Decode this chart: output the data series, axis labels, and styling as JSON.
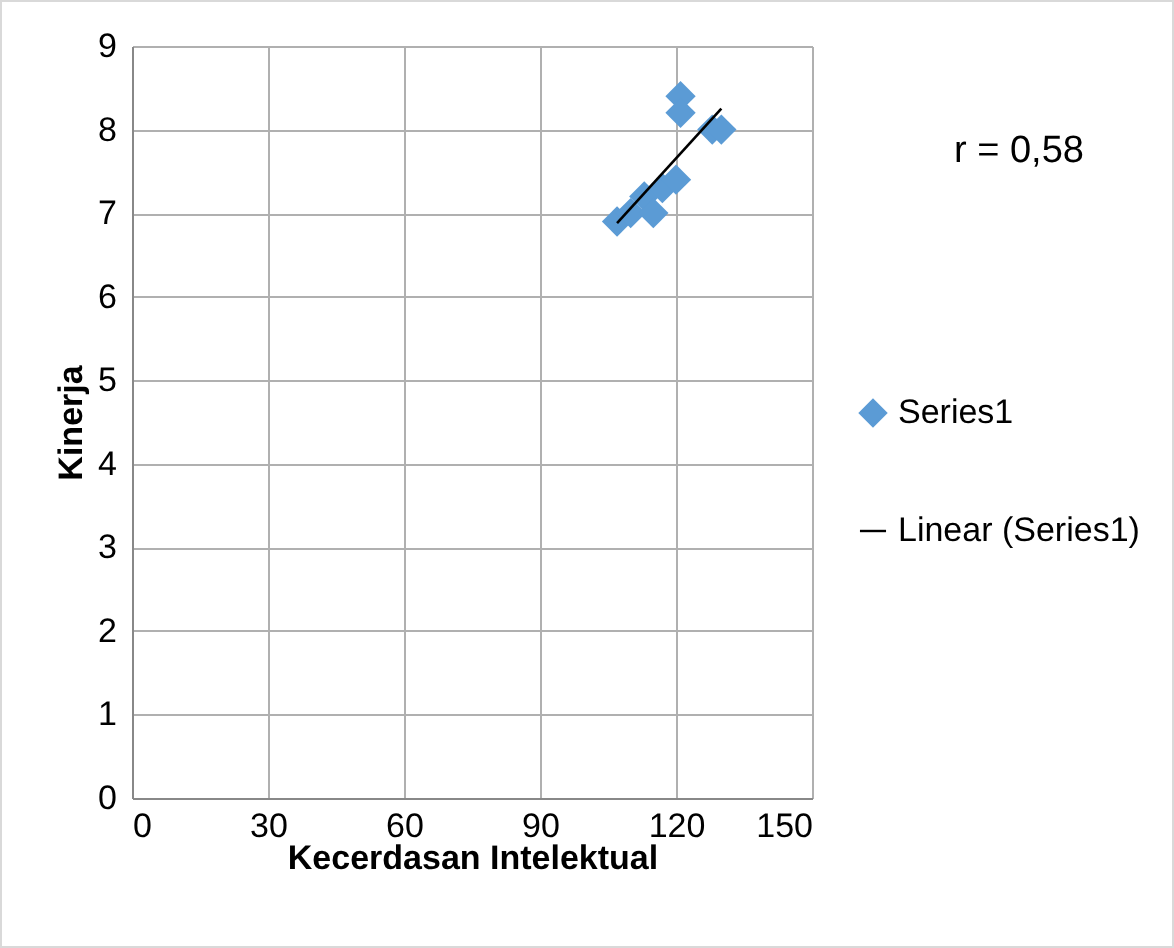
{
  "chart_data": {
    "type": "scatter",
    "xlabel": "Kecerdasan Intelektual",
    "ylabel": "Kinerja",
    "xlim": [
      0,
      150
    ],
    "xticks": [
      0,
      30,
      60,
      90,
      120,
      150
    ],
    "ylim": [
      0,
      9
    ],
    "yticks": [
      0,
      1,
      2,
      3,
      4,
      5,
      6,
      7,
      8,
      9
    ],
    "grid": true,
    "legend": "right",
    "annotations": [
      "r = 0,58"
    ],
    "series": [
      {
        "name": "Series1",
        "color": "#5b9bd5",
        "marker": "diamond",
        "x": [
          107,
          110,
          113,
          115,
          117,
          120,
          121,
          121,
          128,
          130
        ],
        "values": [
          6.9,
          7.0,
          7.2,
          7.0,
          7.3,
          7.4,
          8.4,
          8.2,
          8.0,
          8.0
        ]
      },
      {
        "name": "Linear (Series1)",
        "type": "line",
        "color": "#000000",
        "x": [
          107,
          130
        ],
        "values": [
          6.88,
          8.25
        ]
      }
    ]
  }
}
